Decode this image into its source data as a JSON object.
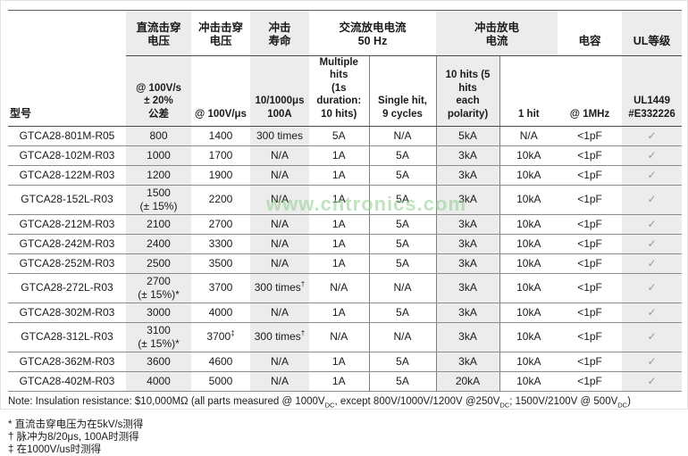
{
  "watermark": "www.cntronics.com",
  "colors": {
    "shade": "#ececec",
    "check": "#8f98a3",
    "watermark": "#8ecf8e"
  },
  "table": {
    "model_header": "型号",
    "groups": [
      {
        "label": "直流击穿\n电压",
        "span": 1,
        "shaded": true
      },
      {
        "label": "冲击击穿\n电压",
        "span": 1,
        "shaded": false
      },
      {
        "label": "冲击\n寿命",
        "span": 1,
        "shaded": true
      },
      {
        "label": "交流放电电流\n50 Hz",
        "span": 2,
        "shaded": false
      },
      {
        "label": "冲击放电\n电流",
        "span": 2,
        "shaded": true
      },
      {
        "label": "电容",
        "span": 1,
        "shaded": false
      },
      {
        "label": "UL等级",
        "span": 1,
        "shaded": true
      }
    ],
    "subheaders": [
      "@ 100V/s\n± 20%\n公差",
      "@ 100V/μs",
      "10/1000μs\n100A",
      "Multiple hits\n(1s duration:\n10 hits)",
      "Single hit,\n9 cycles",
      "10 hits (5 hits\neach polarity)",
      "1 hit",
      "@ 1MHz",
      "UL1449\n#E332226"
    ],
    "rows": [
      {
        "model": "GTCA28-801M-R05",
        "cells": [
          "800",
          "1400",
          "300 times",
          "5A",
          "N/A",
          "5kA",
          "N/A",
          "<1pF",
          "✓"
        ]
      },
      {
        "model": "GTCA28-102M-R03",
        "cells": [
          "1000",
          "1700",
          "N/A",
          "1A",
          "5A",
          "3kA",
          "10kA",
          "<1pF",
          "✓"
        ]
      },
      {
        "model": "GTCA28-122M-R03",
        "cells": [
          "1200",
          "1900",
          "N/A",
          "1A",
          "5A",
          "3kA",
          "10kA",
          "<1pF",
          "✓"
        ]
      },
      {
        "model": "GTCA28-152L-R03",
        "cells": [
          "1500\n(± 15%)",
          "2200",
          "N/A",
          "1A",
          "5A",
          "3kA",
          "10kA",
          "<1pF",
          "✓"
        ]
      },
      {
        "model": "GTCA28-212M-R03",
        "cells": [
          "2100",
          "2700",
          "N/A",
          "1A",
          "5A",
          "3kA",
          "10kA",
          "<1pF",
          "✓"
        ]
      },
      {
        "model": "GTCA28-242M-R03",
        "cells": [
          "2400",
          "3300",
          "N/A",
          "1A",
          "5A",
          "3kA",
          "10kA",
          "<1pF",
          "✓"
        ]
      },
      {
        "model": "GTCA28-252M-R03",
        "cells": [
          "2500",
          "3500",
          "N/A",
          "1A",
          "5A",
          "3kA",
          "10kA",
          "<1pF",
          "✓"
        ]
      },
      {
        "model": "GTCA28-272L-R03",
        "cells": [
          "2700\n(± 15%)*",
          "3700",
          "300 times†",
          "N/A",
          "N/A",
          "3kA",
          "10kA",
          "<1pF",
          "✓"
        ]
      },
      {
        "model": "GTCA28-302M-R03",
        "cells": [
          "3000",
          "4000",
          "N/A",
          "1A",
          "5A",
          "3kA",
          "10kA",
          "<1pF",
          "✓"
        ]
      },
      {
        "model": "GTCA28-312L-R03",
        "cells": [
          "3100\n(± 15%)*",
          "3700‡",
          "300 times†",
          "N/A",
          "N/A",
          "3kA",
          "10kA",
          "<1pF",
          "✓"
        ]
      },
      {
        "model": "GTCA28-362M-R03",
        "cells": [
          "3600",
          "4600",
          "N/A",
          "1A",
          "5A",
          "3kA",
          "10kA",
          "<1pF",
          "✓"
        ]
      },
      {
        "model": "GTCA28-402M-R03",
        "cells": [
          "4000",
          "5000",
          "N/A",
          "1A",
          "5A",
          "20kA",
          "10kA",
          "<1pF",
          "✓"
        ]
      }
    ]
  },
  "notes": {
    "note_parts": [
      "Note: Insulation resistance: $10,000MΩ (all parts measured @ 1000V",
      {
        "sub": "DC"
      },
      ", except 800V/1000V/1200V @250V",
      {
        "sub": "DC"
      },
      "; 1500V/2100V @ 500V",
      {
        "sub": "DC"
      },
      ")"
    ],
    "footnotes": [
      "* 直流击穿电压为在5kV/s测得",
      "† 脉冲为8/20μs, 100A时测得",
      "‡ 在1000V/us时测得"
    ]
  }
}
